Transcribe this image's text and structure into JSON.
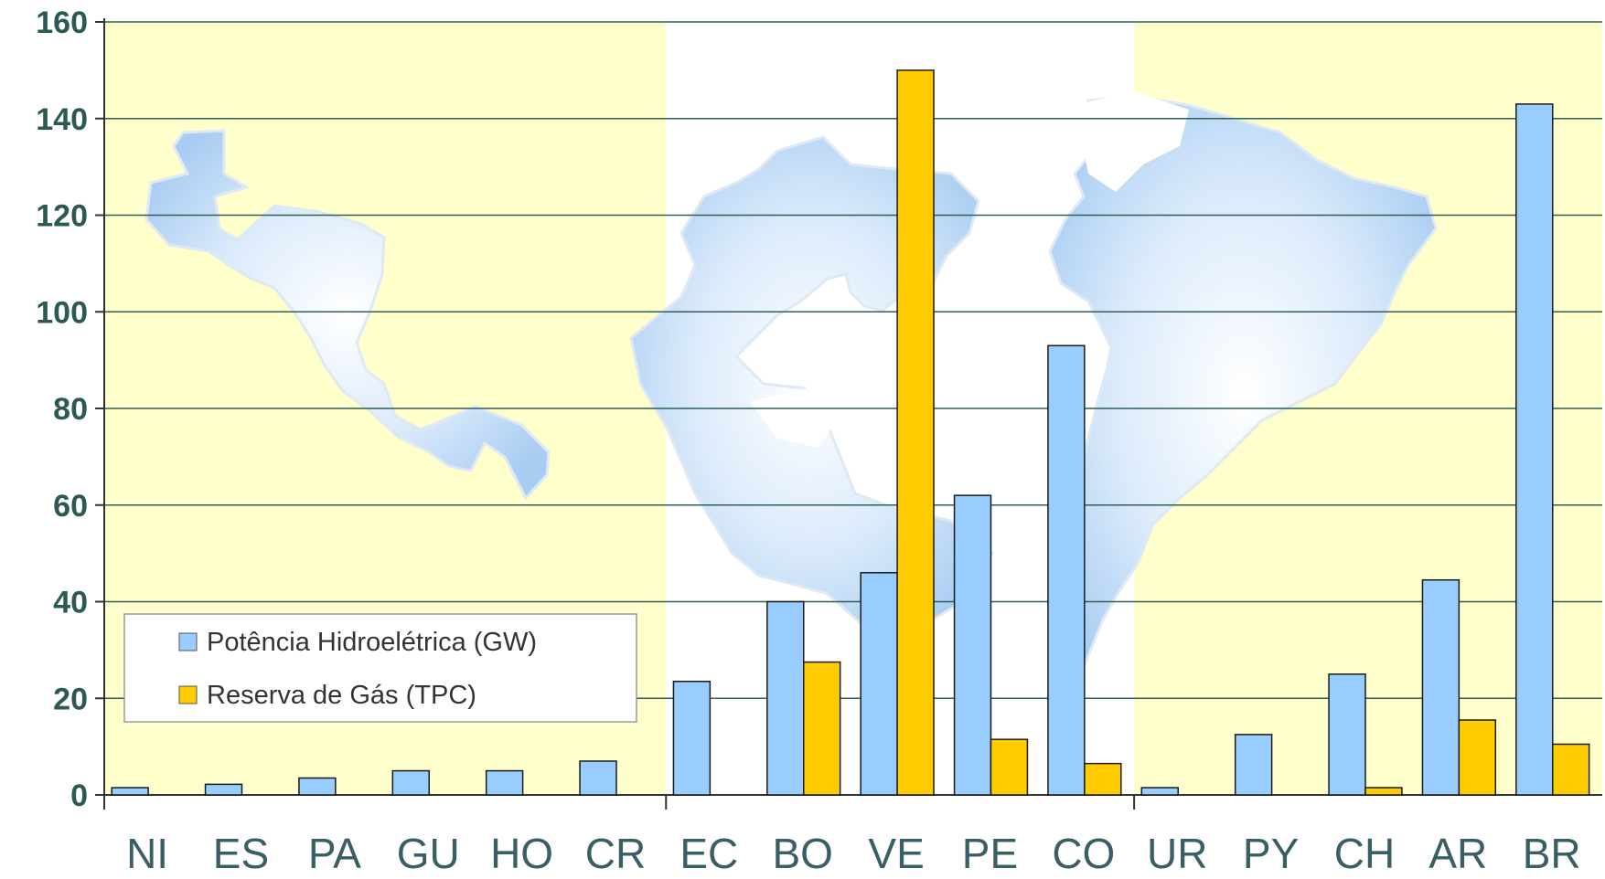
{
  "chart_data": {
    "type": "bar",
    "categories": [
      "NI",
      "ES",
      "PA",
      "GU",
      "HO",
      "CR",
      "EC",
      "BO",
      "VE",
      "PE",
      "CO",
      "UR",
      "PY",
      "CH",
      "AR",
      "BR"
    ],
    "series": [
      {
        "name": "Potência Hidroelétrica (GW)",
        "color": "#99ccff",
        "values": [
          1.5,
          2.2,
          3.5,
          5,
          5,
          7,
          23.5,
          40,
          46,
          62,
          93,
          1.5,
          12.5,
          25,
          44.5,
          143
        ]
      },
      {
        "name": "Reserva de Gás (TPC)",
        "color": "#ffcc00",
        "values": [
          0,
          0,
          0,
          0,
          0,
          0,
          0,
          27.5,
          150,
          11.5,
          6.5,
          0,
          0,
          1.5,
          15.5,
          10.5
        ]
      }
    ],
    "yticks": [
      "0",
      "20",
      "40",
      "60",
      "80",
      "100",
      "120",
      "140",
      "160"
    ],
    "ylim": [
      0,
      160
    ],
    "grid": true,
    "legend_position": "bottom-left",
    "region_shading": [
      {
        "from": "NI",
        "to": "CR",
        "color": "#ffffcc"
      },
      {
        "from": "UR",
        "to": "BR",
        "color": "#ffffcc"
      }
    ]
  }
}
